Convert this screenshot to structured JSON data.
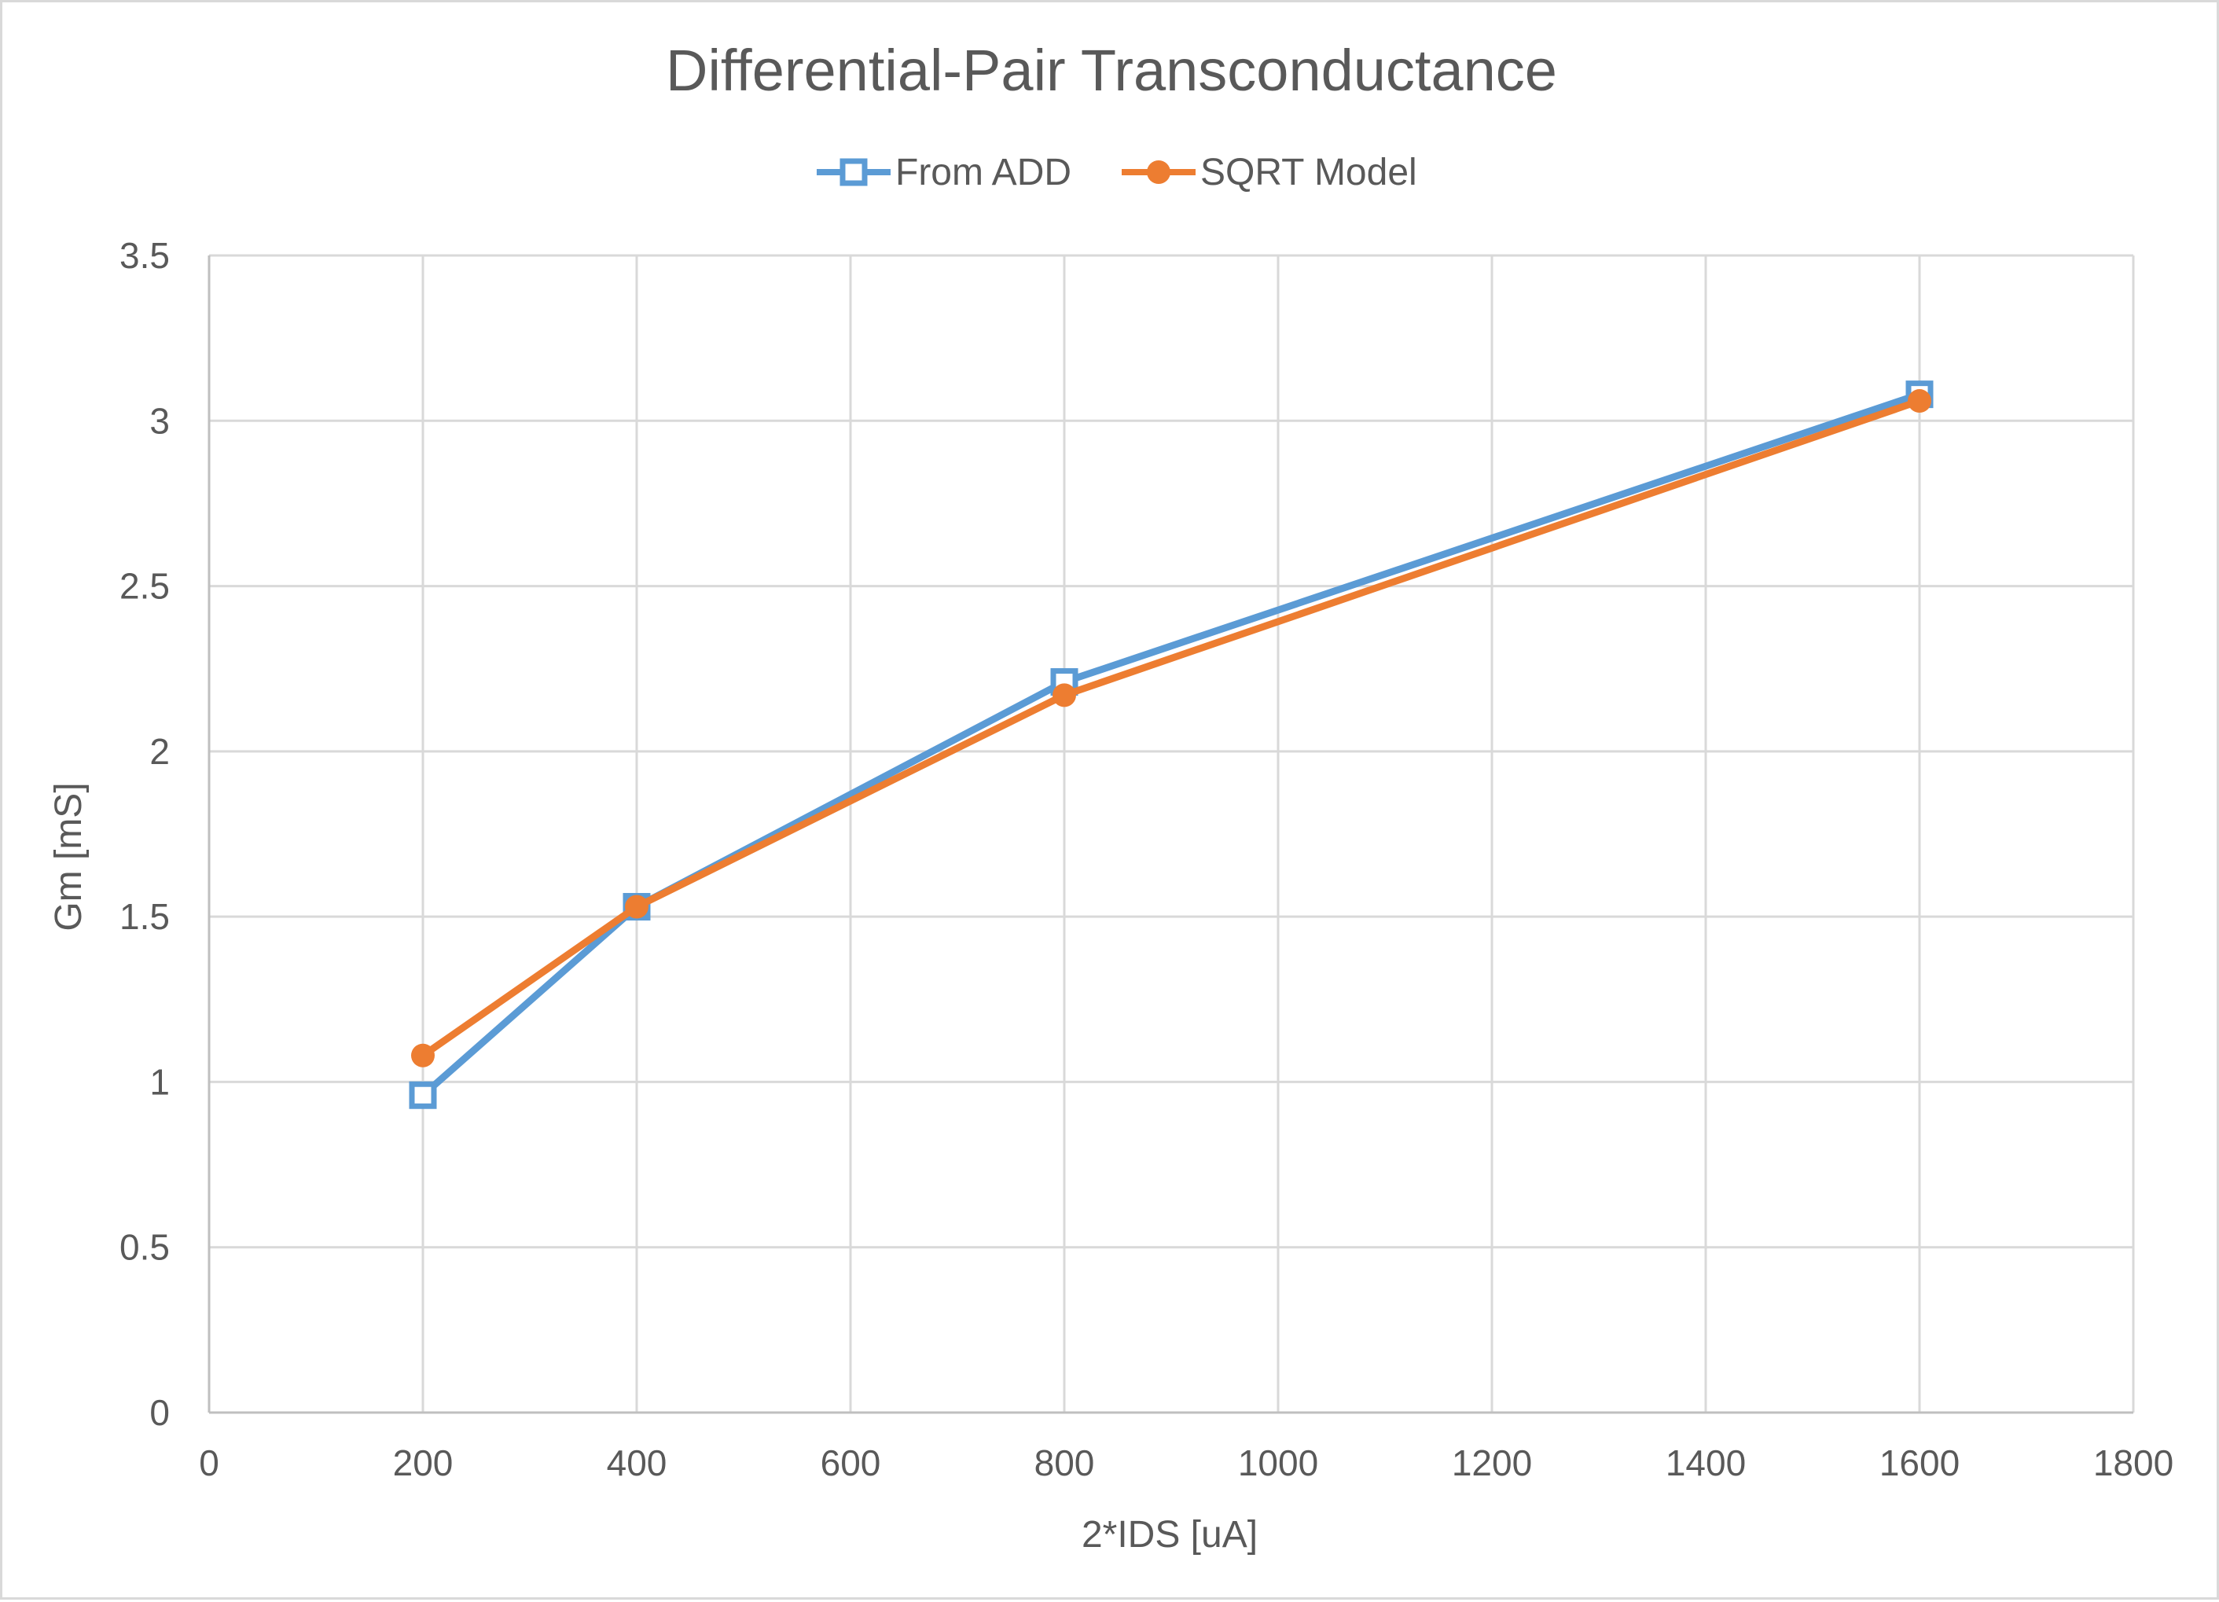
{
  "chart_data": {
    "type": "line",
    "title": "Differential-Pair Transconductance",
    "xlabel": "2*IDS [uA]",
    "ylabel": "Gm [mS]",
    "xlim": [
      0,
      1800
    ],
    "ylim": [
      0,
      3.5
    ],
    "x_ticks": [
      0,
      200,
      400,
      600,
      800,
      1000,
      1200,
      1400,
      1600,
      1800
    ],
    "y_ticks": [
      0,
      0.5,
      1,
      1.5,
      2,
      2.5,
      3,
      3.5
    ],
    "grid": true,
    "legend_position": "top",
    "series": [
      {
        "name": "From ADD",
        "color": "#5b9bd5",
        "marker": "square",
        "x": [
          200,
          400,
          800,
          1600
        ],
        "y": [
          0.96,
          1.53,
          2.21,
          3.08
        ]
      },
      {
        "name": "SQRT Model",
        "color": "#ed7d31",
        "marker": "circle",
        "x": [
          200,
          400,
          800,
          1600
        ],
        "y": [
          1.08,
          1.53,
          2.17,
          3.06
        ]
      }
    ]
  }
}
